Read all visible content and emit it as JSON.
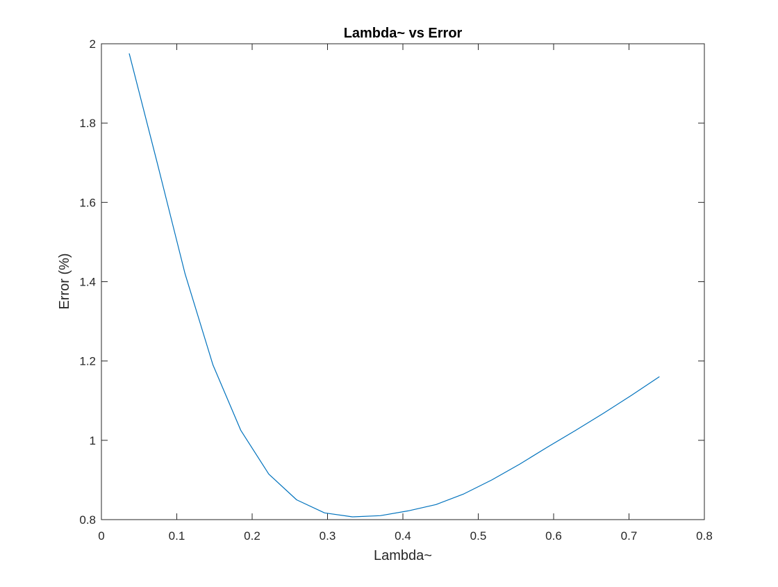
{
  "chart_data": {
    "type": "line",
    "title": "Lambda~ vs Error",
    "xlabel": "Lambda~",
    "ylabel": "Error (%)",
    "xlim": [
      0,
      0.8
    ],
    "ylim": [
      0.8,
      2
    ],
    "xticks": [
      0,
      0.1,
      0.2,
      0.3,
      0.4,
      0.5,
      0.6,
      0.7,
      0.8
    ],
    "xtick_labels": [
      "0",
      "0.1",
      "0.2",
      "0.3",
      "0.4",
      "0.5",
      "0.6",
      "0.7",
      "0.8"
    ],
    "yticks": [
      0.8,
      1,
      1.2,
      1.4,
      1.6,
      1.8,
      2
    ],
    "ytick_labels": [
      "0.8",
      "1",
      "1.2",
      "1.4",
      "1.6",
      "1.8",
      "2"
    ],
    "grid": false,
    "box": true,
    "series": [
      {
        "color": "#0072BD",
        "x": [
          0.037,
          0.074,
          0.111,
          0.148,
          0.185,
          0.222,
          0.259,
          0.296,
          0.333,
          0.37,
          0.407,
          0.444,
          0.481,
          0.518,
          0.555,
          0.592,
          0.629,
          0.666,
          0.703,
          0.74
        ],
        "y": [
          1.975,
          1.7,
          1.42,
          1.19,
          1.025,
          0.915,
          0.85,
          0.817,
          0.807,
          0.81,
          0.822,
          0.838,
          0.865,
          0.9,
          0.94,
          0.983,
          1.025,
          1.068,
          1.113,
          1.16
        ]
      }
    ]
  }
}
